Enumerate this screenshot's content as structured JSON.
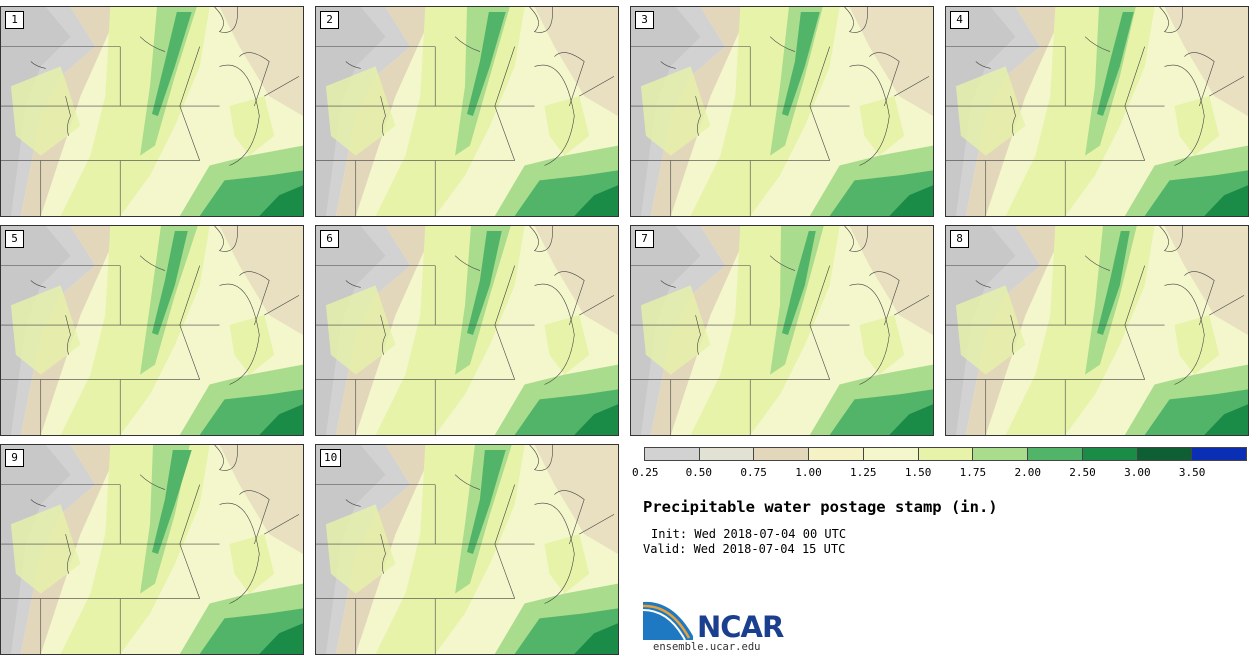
{
  "panels": [
    {
      "label": "1"
    },
    {
      "label": "2"
    },
    {
      "label": "3"
    },
    {
      "label": "4"
    },
    {
      "label": "5"
    },
    {
      "label": "6"
    },
    {
      "label": "7"
    },
    {
      "label": "8"
    },
    {
      "label": "9"
    },
    {
      "label": "10"
    }
  ],
  "colorbar": {
    "ticks": [
      "0.25",
      "0.50",
      "0.75",
      "1.00",
      "1.25",
      "1.50",
      "1.75",
      "2.00",
      "2.50",
      "3.00",
      "3.50"
    ],
    "colors": [
      "#d2d2d2",
      "#e2e2d4",
      "#e3d7bb",
      "#f5f3c6",
      "#f4f6cc",
      "#e6f3a9",
      "#a9dc8c",
      "#52b468",
      "#1a8c48",
      "#0f5f35",
      "#0a2fb5"
    ]
  },
  "title": "Precipitable water postage stamp (in.)",
  "init_label": "Init: Wed 2018-07-04 00 UTC",
  "valid_label": "Valid: Wed 2018-07-04 15 UTC",
  "logo": {
    "word": "NCAR",
    "url": "ensemble.ucar.edu"
  }
}
